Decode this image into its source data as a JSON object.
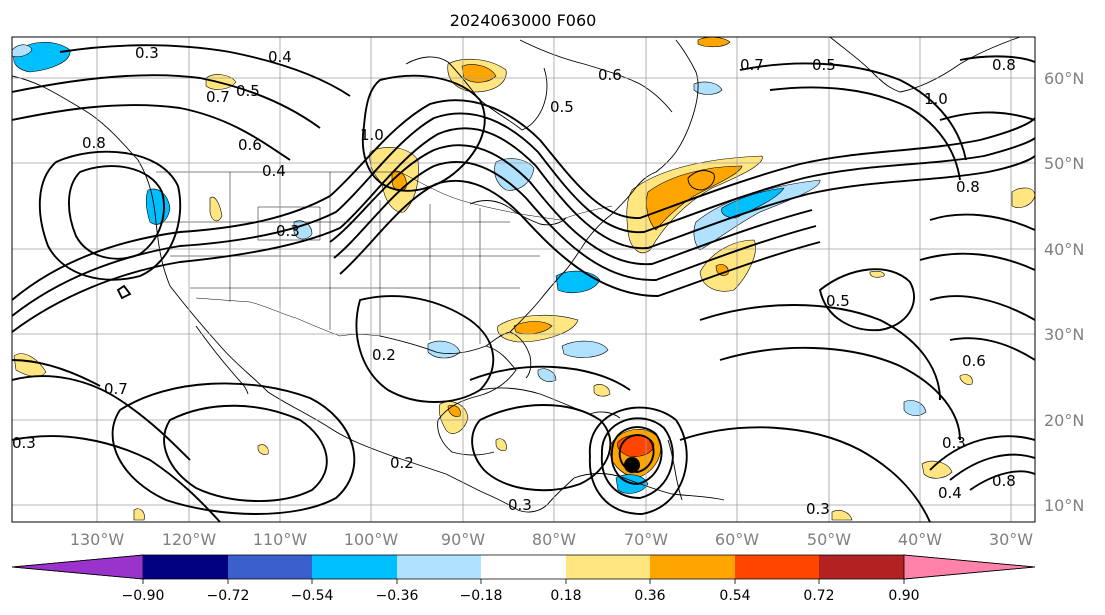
{
  "map": {
    "title": "2024063000 F060",
    "projection": "lat-lon",
    "lon_range": [
      -136,
      -24
    ],
    "lat_range": [
      8,
      65
    ],
    "lat_ticks": [
      "60°N",
      "50°N",
      "40°N",
      "30°N",
      "20°N",
      "10°N"
    ],
    "lon_ticks": [
      "130°W",
      "120°W",
      "110°W",
      "100°W",
      "90°W",
      "80°W",
      "70°W",
      "60°W",
      "50°W",
      "40°W",
      "30°W"
    ],
    "contour_labels": [
      "0.3",
      "0.4",
      "0.5",
      "0.7",
      "0.6",
      "0.8",
      "1.0",
      "0.4",
      "0.3",
      "0.2",
      "0.5",
      "0.6",
      "0.7",
      "0.3",
      "0.2",
      "0.3",
      "0.5",
      "0.7",
      "0.5",
      "0.8",
      "1.0",
      "0.8",
      "0.6",
      "0.3",
      "0.8",
      "0.4",
      "0.3"
    ],
    "grid": true,
    "colors": {
      "coastline": "#000000",
      "contour": "#000000",
      "gridline": "#a0a0a0",
      "storm_center": "#000000"
    }
  },
  "colorbar": {
    "extend": "both",
    "ticks": [
      "−0.90",
      "−0.72",
      "−0.54",
      "−0.36",
      "−0.18",
      "0.18",
      "0.36",
      "0.54",
      "0.72",
      "0.90"
    ],
    "bins": [
      {
        "color": "#9933cc",
        "range": "< -0.90"
      },
      {
        "color": "#000080",
        "range": "-0.90 to -0.72"
      },
      {
        "color": "#3a5fcd",
        "range": "-0.72 to -0.54"
      },
      {
        "color": "#00bfff",
        "range": "-0.54 to -0.36"
      },
      {
        "color": "#b0e2ff",
        "range": "-0.36 to -0.18"
      },
      {
        "color": "#ffffff",
        "range": "-0.18 to 0.18"
      },
      {
        "color": "#ffe680",
        "range": "0.18 to 0.36"
      },
      {
        "color": "#ffa500",
        "range": "0.36 to 0.54"
      },
      {
        "color": "#ff4500",
        "range": "0.54 to 0.72"
      },
      {
        "color": "#b22222",
        "range": "0.72 to 0.90"
      },
      {
        "color": "#ff82ab",
        "range": "> 0.90"
      }
    ]
  }
}
